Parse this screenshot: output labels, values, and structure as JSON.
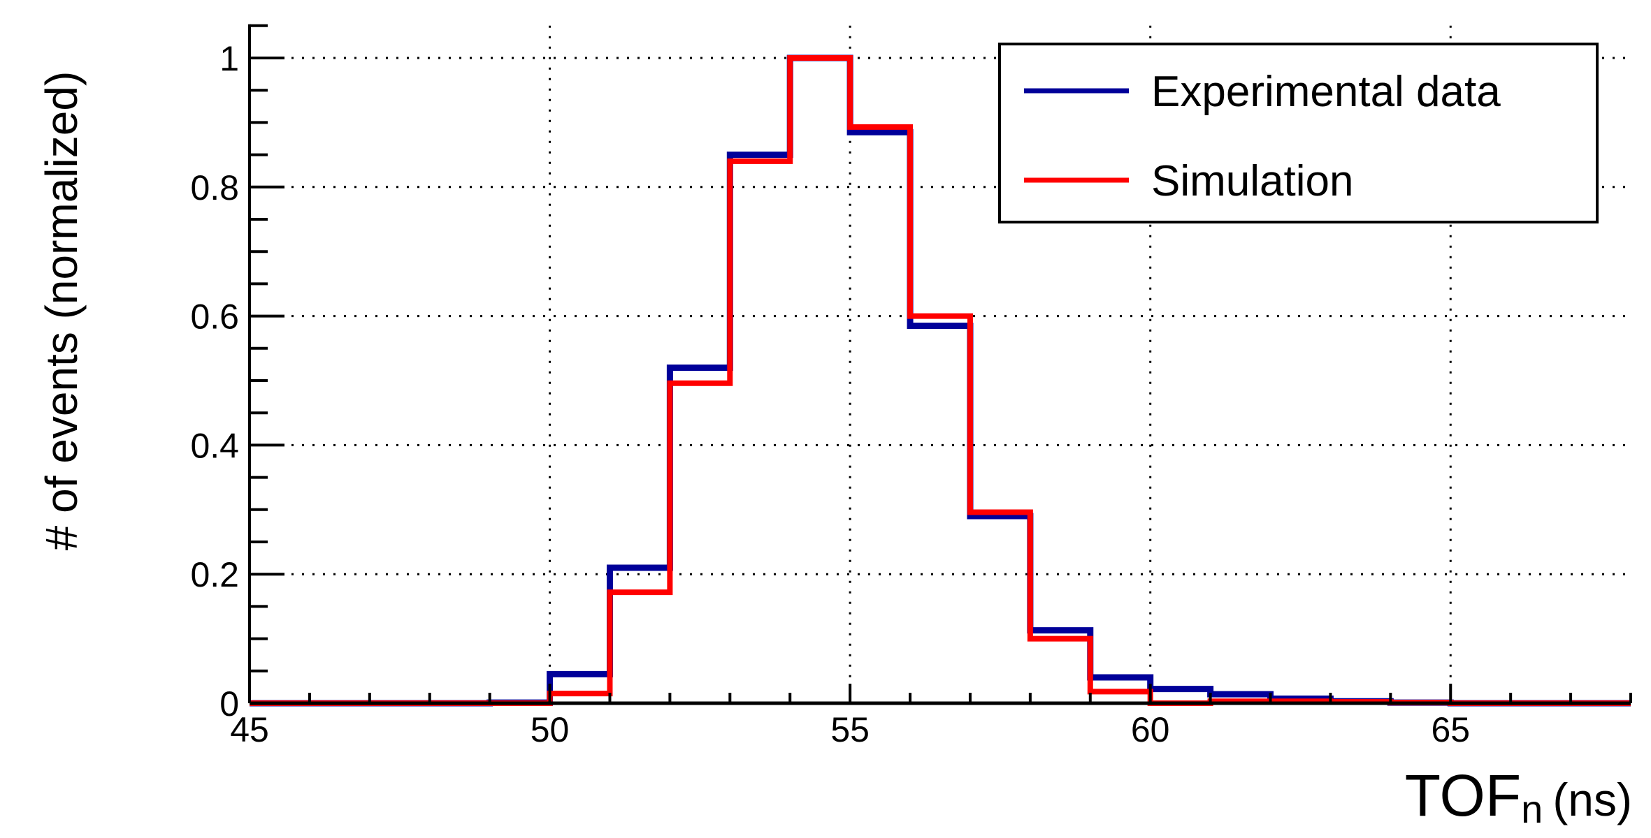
{
  "chart_data": {
    "type": "step-histogram",
    "xlabel": "TOF",
    "xlabel_subscript": "n",
    "xlabel_unit": "(ns)",
    "ylabel": "# of events (normalized)",
    "xlim": [
      45,
      68
    ],
    "ylim": [
      0,
      1.05
    ],
    "xticks": [
      "45",
      "50",
      "55",
      "60",
      "65"
    ],
    "yticks": [
      "0",
      "0.2",
      "0.4",
      "0.6",
      "0.8",
      "1"
    ],
    "grid": true,
    "legend_placement": "top-right",
    "bin_edges": [
      45,
      46,
      47,
      48,
      49,
      50,
      51,
      52,
      53,
      54,
      55,
      56,
      57,
      58,
      59,
      60,
      61,
      62,
      63,
      64,
      65,
      66,
      67,
      68
    ],
    "series": [
      {
        "name": "Experimental data",
        "color": "#000099",
        "values": [
          0,
          0,
          0,
          0,
          0.001,
          0.045,
          0.21,
          0.52,
          0.85,
          1.0,
          0.885,
          0.585,
          0.29,
          0.113,
          0.04,
          0.022,
          0.014,
          0.007,
          0.003,
          0.001,
          0,
          0,
          0
        ]
      },
      {
        "name": "Simulation",
        "color": "#ff0000",
        "values": [
          0,
          0,
          0,
          0,
          0,
          0.015,
          0.172,
          0.496,
          0.84,
          1.0,
          0.893,
          0.6,
          0.296,
          0.1,
          0.018,
          0,
          0.003,
          0.003,
          0.002,
          0.001,
          0,
          0,
          0
        ]
      }
    ]
  }
}
